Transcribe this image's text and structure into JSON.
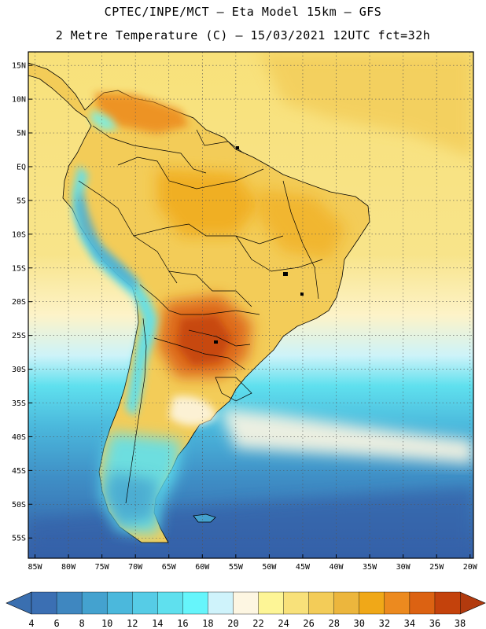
{
  "header": {
    "line1": "CPTEC/INPE/MCT –  Eta Model 15km – GFS",
    "line2": "2 Metre Temperature (C) – 15/03/2021 12UTC fct=32h"
  },
  "map": {
    "lon_min": -86,
    "lon_max": -19.5,
    "lat_min": -58,
    "lat_max": 17,
    "lat_ticks": [
      {
        "value": 15,
        "label": "15N"
      },
      {
        "value": 10,
        "label": "10N"
      },
      {
        "value": 5,
        "label": "5N"
      },
      {
        "value": 0,
        "label": "EQ"
      },
      {
        "value": -5,
        "label": "5S"
      },
      {
        "value": -10,
        "label": "10S"
      },
      {
        "value": -15,
        "label": "15S"
      },
      {
        "value": -20,
        "label": "20S"
      },
      {
        "value": -25,
        "label": "25S"
      },
      {
        "value": -30,
        "label": "30S"
      },
      {
        "value": -35,
        "label": "35S"
      },
      {
        "value": -40,
        "label": "40S"
      },
      {
        "value": -45,
        "label": "45S"
      },
      {
        "value": -50,
        "label": "50S"
      },
      {
        "value": -55,
        "label": "55S"
      }
    ],
    "lon_ticks": [
      {
        "value": -85,
        "label": "85W"
      },
      {
        "value": -80,
        "label": "80W"
      },
      {
        "value": -75,
        "label": "75W"
      },
      {
        "value": -70,
        "label": "70W"
      },
      {
        "value": -65,
        "label": "65W"
      },
      {
        "value": -60,
        "label": "60W"
      },
      {
        "value": -55,
        "label": "55W"
      },
      {
        "value": -50,
        "label": "50W"
      },
      {
        "value": -45,
        "label": "45W"
      },
      {
        "value": -40,
        "label": "40W"
      },
      {
        "value": -35,
        "label": "35W"
      },
      {
        "value": -30,
        "label": "30W"
      },
      {
        "value": -25,
        "label": "25W"
      },
      {
        "value": -20,
        "label": "20W"
      }
    ]
  },
  "colorbar": {
    "below_color": "#3a6fb0",
    "above_color": "#b23a0e",
    "labels": [
      "4",
      "6",
      "8",
      "10",
      "12",
      "14",
      "16",
      "18",
      "20",
      "22",
      "24",
      "26",
      "28",
      "30",
      "32",
      "34",
      "36",
      "38"
    ],
    "colors": [
      "#3b6fb3",
      "#3f87c0",
      "#44a2cf",
      "#4bb8dc",
      "#56cce6",
      "#5fe0ee",
      "#66f5fb",
      "#cff3fb",
      "#fdf6e2",
      "#fdf596",
      "#f8e17a",
      "#f3cc58",
      "#ecb63d",
      "#f0a818",
      "#ec8a1f",
      "#dc6212",
      "#c4420c"
    ]
  }
}
